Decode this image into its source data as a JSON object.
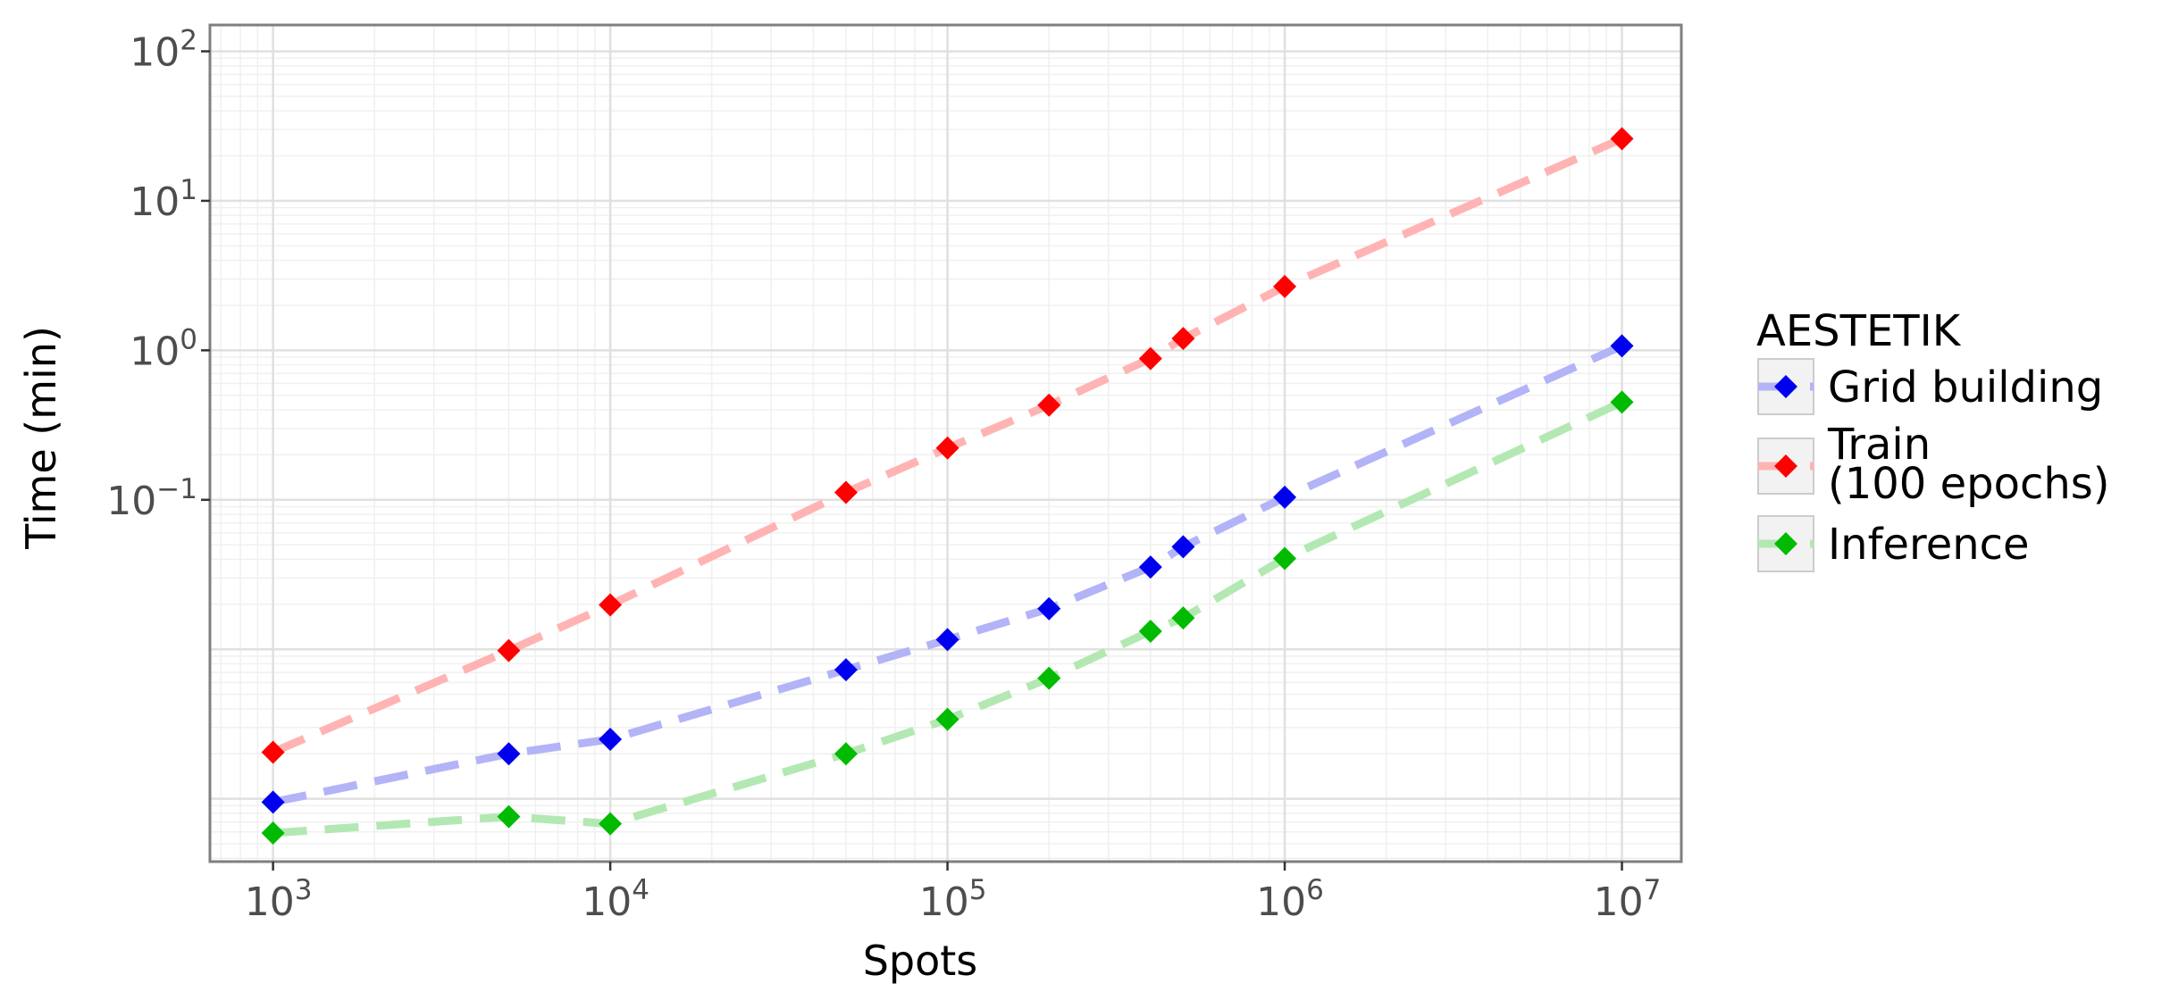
{
  "chart_data": {
    "type": "line",
    "x_scale": "log",
    "y_scale": "log",
    "xlabel": "Spots",
    "ylabel": "Time (min)",
    "xlim": [
      650,
      15000000
    ],
    "ylim": [
      0.00038,
      150
    ],
    "x_ticks": [
      {
        "value": 1000,
        "base": "10",
        "exp": "3"
      },
      {
        "value": 10000,
        "base": "10",
        "exp": "4"
      },
      {
        "value": 100000,
        "base": "10",
        "exp": "5"
      },
      {
        "value": 1000000,
        "base": "10",
        "exp": "6"
      },
      {
        "value": 10000000,
        "base": "10",
        "exp": "7"
      }
    ],
    "y_ticks": [
      {
        "value": 0.1,
        "base": "10",
        "exp": "−1"
      },
      {
        "value": 1,
        "base": "10",
        "exp": "0"
      },
      {
        "value": 10,
        "base": "10",
        "exp": "1"
      },
      {
        "value": 100,
        "base": "10",
        "exp": "2"
      }
    ],
    "grid": true,
    "legend_title": "AESTETIK",
    "legend_position": "right",
    "series": [
      {
        "name": "Grid building",
        "color": "#0000ee",
        "line_color": "#b3b3f8",
        "x": [
          1000,
          5000,
          10000,
          50000,
          100000,
          200000,
          400000,
          500000,
          1000000,
          10000000
        ],
        "y": [
          0.00095,
          0.002,
          0.0025,
          0.0073,
          0.0116,
          0.0187,
          0.0355,
          0.0485,
          0.104,
          1.07
        ]
      },
      {
        "name": "Train (100 epochs)",
        "name_lines": [
          "Train",
          "(100 epochs)"
        ],
        "color": "#ff0000",
        "line_color": "#ffb3b3",
        "x": [
          1000,
          5000,
          10000,
          50000,
          100000,
          200000,
          400000,
          500000,
          1000000,
          10000000
        ],
        "y": [
          0.00205,
          0.0098,
          0.0198,
          0.112,
          0.222,
          0.43,
          0.88,
          1.2,
          2.67,
          26.0
        ]
      },
      {
        "name": "Inference",
        "color": "#00bb00",
        "line_color": "#b3e8b3",
        "x": [
          1000,
          5000,
          10000,
          50000,
          100000,
          200000,
          400000,
          500000,
          1000000,
          10000000
        ],
        "y": [
          0.00059,
          0.00076,
          0.00068,
          0.002,
          0.0034,
          0.0064,
          0.0132,
          0.0162,
          0.0405,
          0.45
        ]
      }
    ]
  }
}
